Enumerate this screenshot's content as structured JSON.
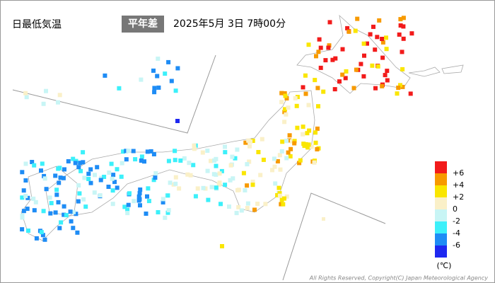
{
  "header": {
    "title": "日最低気温",
    "tag": "平年差",
    "datetime": "2025年5月 3日 7時00分"
  },
  "legend": {
    "ticks": [
      {
        "value": 6,
        "label": "+6"
      },
      {
        "value": 4,
        "label": "+4"
      },
      {
        "value": 2,
        "label": "+2"
      },
      0,
      -2,
      -4,
      -6
    ],
    "unit": "(℃)",
    "colors": [
      "#f21b1b",
      "#f79a00",
      "#fae600",
      "#faf0c8",
      "#c8f5f5",
      "#3cf0fa",
      "#1e8cf5",
      "#1e28f0"
    ]
  },
  "footer": {
    "copyright": "All Rights Reserved, Copyright(C) Japan Meteorological Agency"
  }
}
